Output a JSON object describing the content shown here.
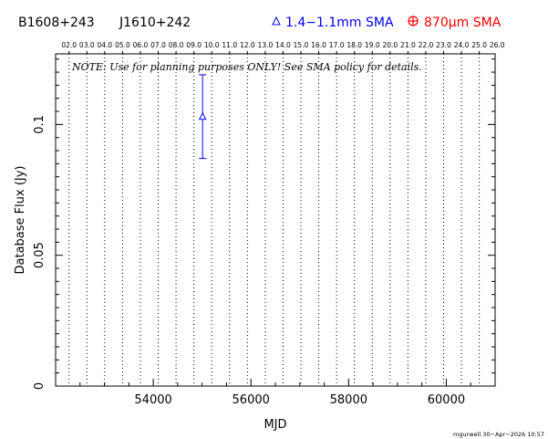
{
  "header": {
    "source_name": "B1608+243",
    "alt_name": "J1610+242",
    "legend_band1": "1.4−1.1mm SMA",
    "legend_band2_prefix": "870",
    "legend_band2_unit": "μm SMA",
    "band1_color": "#0000ff",
    "band2_color": "#ff0000",
    "band1_marker": "triangle-icon",
    "band2_marker": "circle-plus-icon"
  },
  "note": "NOTE: Use for planning purposes ONLY!  See SMA policy for details.",
  "footer_stamp": "mgurwell 30−Apr−2026 10:57",
  "chart_data": {
    "type": "scatter",
    "xlabel": "MJD",
    "ylabel": "Database Flux (Jy)",
    "xlim": [
      52000,
      61000
    ],
    "ylim": [
      0,
      0.127
    ],
    "x_ticks": [
      54000,
      56000,
      58000,
      60000
    ],
    "x_tick_labels": [
      "54000",
      "56000",
      "58000",
      "60000"
    ],
    "y_ticks": [
      0,
      0.05,
      0.1
    ],
    "y_tick_labels": [
      "0",
      "0.05",
      "0.1"
    ],
    "top_axis": {
      "labels": [
        "02.0",
        "03.0",
        "04.0",
        "05.0",
        "06.0",
        "07.0",
        "08.0",
        "09.0",
        "10.0",
        "11.0",
        "12.0",
        "13.0",
        "14.0",
        "15.0",
        "16.0",
        "17.0",
        "18.0",
        "19.0",
        "20.0",
        "21.0",
        "22.0",
        "23.0",
        "24.0",
        "25.0",
        "26.0"
      ],
      "year_start_mjd": [
        52275,
        52640,
        53005,
        53371,
        53736,
        54101,
        54466,
        54832,
        55197,
        55562,
        55927,
        56293,
        56658,
        57023,
        57388,
        57754,
        58119,
        58484,
        58849,
        59215,
        59580,
        59945,
        60310,
        60676,
        61041
      ]
    },
    "grid": "vertical dotted lines at each year boundary",
    "series": [
      {
        "name": "1.4−1.1mm SMA",
        "color": "#0000ff",
        "marker": "triangle",
        "points": [
          {
            "x": 55010,
            "y": 0.103,
            "yerr_low": 0.087,
            "yerr_high": 0.119
          }
        ]
      },
      {
        "name": "870μm SMA",
        "color": "#ff0000",
        "marker": "circle-plus",
        "points": []
      }
    ]
  }
}
